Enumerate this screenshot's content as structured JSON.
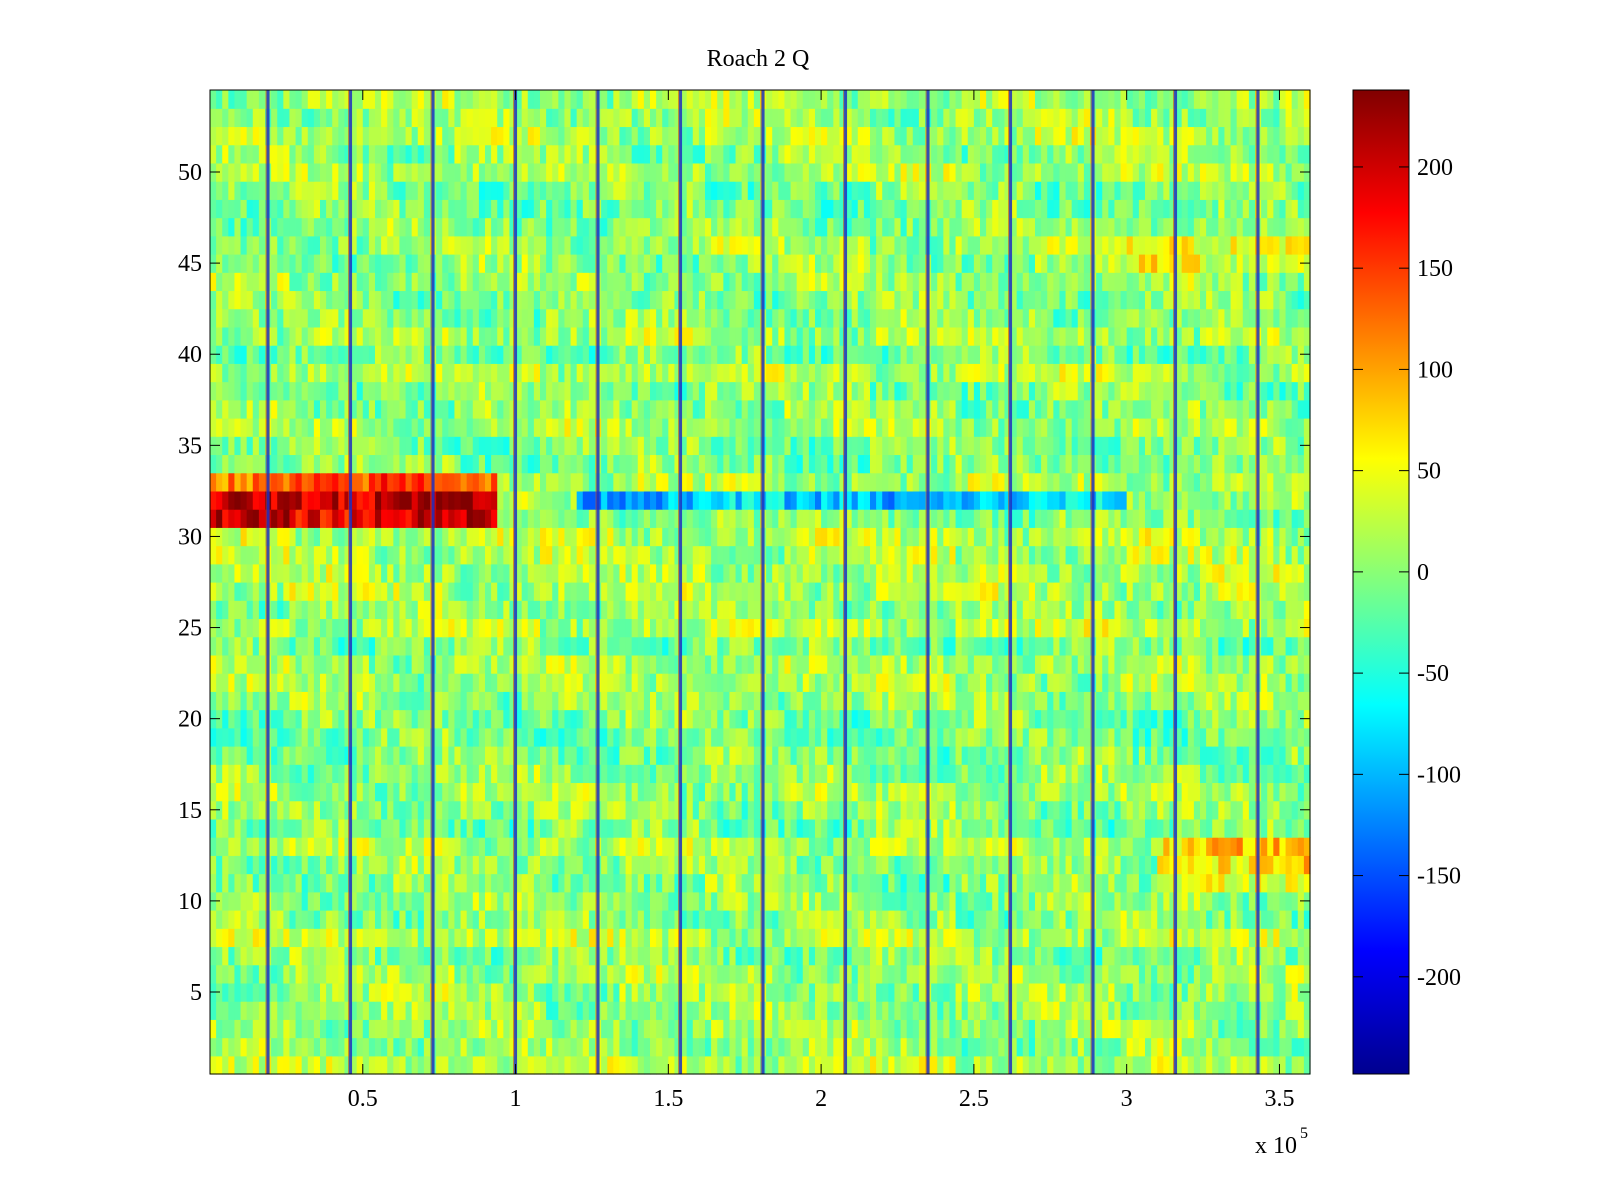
{
  "chart_data": {
    "type": "heatmap",
    "title": "Roach 2 Q",
    "xlabel": "",
    "ylabel": "",
    "x_exponent_label": {
      "prefix": "x 10",
      "power": "5"
    },
    "xlim": [
      0,
      3.6
    ],
    "ylim": [
      0.5,
      54.5
    ],
    "x_ticks": [
      0.5,
      1,
      1.5,
      2,
      2.5,
      3,
      3.5
    ],
    "x_tick_labels": [
      "0.5",
      "1",
      "1.5",
      "2",
      "2.5",
      "3",
      "3.5"
    ],
    "y_ticks": [
      5,
      10,
      15,
      20,
      25,
      30,
      35,
      40,
      45,
      50
    ],
    "y_tick_labels": [
      "5",
      "10",
      "15",
      "20",
      "25",
      "30",
      "35",
      "40",
      "45",
      "50"
    ],
    "rows": 54,
    "colormap": "jet",
    "colorbar": {
      "clim": [
        -248,
        238
      ],
      "ticks": [
        200,
        150,
        100,
        50,
        0,
        -50,
        -100,
        -150,
        -200
      ],
      "tick_labels": [
        "200",
        "150",
        "100",
        "50",
        "0",
        "-50",
        "-100",
        "-150",
        "-200"
      ]
    },
    "vertical_stripes_x": [
      0.19,
      0.46,
      0.73,
      1.0,
      1.27,
      1.54,
      1.81,
      2.08,
      2.35,
      2.62,
      2.89,
      3.16,
      3.43
    ],
    "band_features": [
      {
        "rows": [
          31,
          32
        ],
        "x_range": [
          0.0,
          0.95
        ],
        "level": 200,
        "note": "strong positive band"
      },
      {
        "rows": [
          33,
          33
        ],
        "x_range": [
          0.0,
          0.95
        ],
        "level": 120,
        "note": "positive band"
      },
      {
        "rows": [
          32,
          32
        ],
        "x_range": [
          1.2,
          3.0
        ],
        "level": -110,
        "note": "negative band"
      },
      {
        "rows": [
          11,
          13
        ],
        "x_range": [
          3.1,
          3.6
        ],
        "level": 60,
        "note": "positive patch"
      },
      {
        "rows": [
          45,
          46
        ],
        "x_range": [
          3.0,
          3.6
        ],
        "level": 50,
        "note": "positive patch"
      }
    ]
  }
}
